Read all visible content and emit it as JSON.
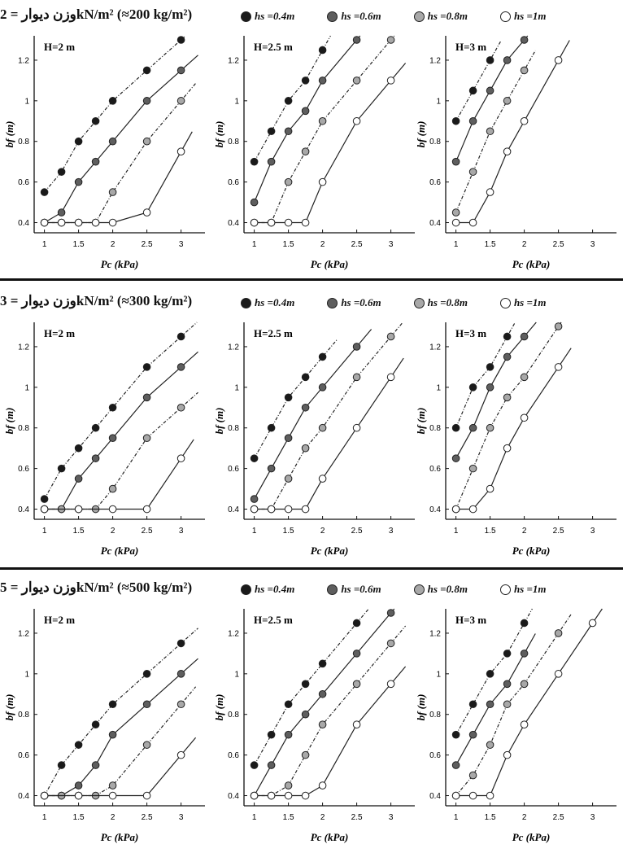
{
  "legend": [
    {
      "label": "hs =0.4m",
      "color": "#1a1a1a"
    },
    {
      "label": "hs =0.6m",
      "color": "#5e5e5e"
    },
    {
      "label": "hs =0.8m",
      "color": "#a8a8a8"
    },
    {
      "label": "hs =1m",
      "color": "#ffffff"
    }
  ],
  "rows": [
    {
      "title": "وزن دیوار = 2kN/m² (≈200 kg/m²)"
    },
    {
      "title": "وزن دیوار = 3kN/m² (≈300 kg/m²)"
    },
    {
      "title": "وزن دیوار = 5kN/m² (≈500 kg/m²)"
    }
  ],
  "chart_data": [
    {
      "type": "line",
      "row": 0,
      "panel_label": "H=2 m",
      "xlabel": "Pc (kPa)",
      "ylabel": "bf (m)",
      "xticks": [
        "1",
        "1.5",
        "2",
        "2.5",
        "3"
      ],
      "yticks": [
        "0.4",
        "0.6",
        "0.8",
        "1",
        "1.2"
      ],
      "xlim": [
        0.85,
        3.35
      ],
      "ylim": [
        0.35,
        1.32
      ],
      "series": [
        {
          "name": "hs =0.4m",
          "x": [
            1,
            1.25,
            1.5,
            1.75,
            2,
            2.5,
            3
          ],
          "y": [
            0.55,
            0.65,
            0.8,
            0.9,
            1.0,
            1.15,
            1.3
          ]
        },
        {
          "name": "hs =0.6m",
          "x": [
            1,
            1.25,
            1.5,
            1.75,
            2,
            2.5,
            3
          ],
          "y": [
            0.4,
            0.45,
            0.6,
            0.7,
            0.8,
            1.0,
            1.15
          ]
        },
        {
          "name": "hs =0.8m",
          "x": [
            1,
            1.25,
            1.5,
            1.75,
            2,
            2.5,
            3
          ],
          "y": [
            0.4,
            0.4,
            0.4,
            0.4,
            0.55,
            0.8,
            1.0
          ]
        },
        {
          "name": "hs =1m",
          "x": [
            1,
            1.25,
            1.5,
            1.75,
            2,
            2.5,
            3
          ],
          "y": [
            0.4,
            0.4,
            0.4,
            0.4,
            0.4,
            0.45,
            0.75
          ]
        }
      ]
    },
    {
      "type": "line",
      "row": 0,
      "panel_label": "H=2.5 m",
      "xlabel": "Pc (kPa)",
      "ylabel": "bf (m)",
      "xticks": [
        "1",
        "1.5",
        "2",
        "2.5",
        "3"
      ],
      "yticks": [
        "0.4",
        "0.6",
        "0.8",
        "1",
        "1.2"
      ],
      "xlim": [
        0.85,
        3.35
      ],
      "ylim": [
        0.35,
        1.32
      ],
      "series": [
        {
          "name": "hs =0.4m",
          "x": [
            1,
            1.25,
            1.5,
            1.75,
            2
          ],
          "y": [
            0.7,
            0.85,
            1.0,
            1.1,
            1.25
          ]
        },
        {
          "name": "hs =0.6m",
          "x": [
            1,
            1.25,
            1.5,
            1.75,
            2,
            2.5
          ],
          "y": [
            0.5,
            0.7,
            0.85,
            0.95,
            1.1,
            1.3
          ]
        },
        {
          "name": "hs =0.8m",
          "x": [
            1,
            1.25,
            1.5,
            1.75,
            2,
            2.5,
            3
          ],
          "y": [
            0.4,
            0.4,
            0.6,
            0.75,
            0.9,
            1.1,
            1.3
          ]
        },
        {
          "name": "hs =1m",
          "x": [
            1,
            1.25,
            1.5,
            1.75,
            2,
            2.5,
            3
          ],
          "y": [
            0.4,
            0.4,
            0.4,
            0.4,
            0.6,
            0.9,
            1.1
          ]
        }
      ]
    },
    {
      "type": "line",
      "row": 0,
      "panel_label": "H=3 m",
      "xlabel": "Pc (kPa)",
      "ylabel": "bf (m)",
      "xticks": [
        "1",
        "1.5",
        "2",
        "2.5",
        "3"
      ],
      "yticks": [
        "0.4",
        "0.6",
        "0.8",
        "1",
        "1.2"
      ],
      "xlim": [
        0.85,
        3.35
      ],
      "ylim": [
        0.35,
        1.32
      ],
      "series": [
        {
          "name": "hs =0.4m",
          "x": [
            1,
            1.25,
            1.5
          ],
          "y": [
            0.9,
            1.05,
            1.2
          ]
        },
        {
          "name": "hs =0.6m",
          "x": [
            1,
            1.25,
            1.5,
            1.75,
            2
          ],
          "y": [
            0.7,
            0.9,
            1.05,
            1.2,
            1.3
          ]
        },
        {
          "name": "hs =0.8m",
          "x": [
            1,
            1.25,
            1.5,
            1.75,
            2
          ],
          "y": [
            0.45,
            0.65,
            0.85,
            1.0,
            1.15
          ]
        },
        {
          "name": "hs =1m",
          "x": [
            1,
            1.25,
            1.5,
            1.75,
            2,
            2.5
          ],
          "y": [
            0.4,
            0.4,
            0.55,
            0.75,
            0.9,
            1.2
          ]
        }
      ]
    },
    {
      "type": "line",
      "row": 1,
      "panel_label": "H=2 m",
      "xlabel": "Pc (kPa)",
      "ylabel": "bf (m)",
      "xticks": [
        "1",
        "1.5",
        "2",
        "2.5",
        "3"
      ],
      "yticks": [
        "0.4",
        "0.6",
        "0.8",
        "1",
        "1.2"
      ],
      "xlim": [
        0.85,
        3.35
      ],
      "ylim": [
        0.35,
        1.32
      ],
      "series": [
        {
          "name": "hs =0.4m",
          "x": [
            1,
            1.25,
            1.5,
            1.75,
            2,
            2.5,
            3
          ],
          "y": [
            0.45,
            0.6,
            0.7,
            0.8,
            0.9,
            1.1,
            1.25
          ]
        },
        {
          "name": "hs =0.6m",
          "x": [
            1,
            1.25,
            1.5,
            1.75,
            2,
            2.5,
            3
          ],
          "y": [
            0.4,
            0.4,
            0.55,
            0.65,
            0.75,
            0.95,
            1.1
          ]
        },
        {
          "name": "hs =0.8m",
          "x": [
            1,
            1.25,
            1.5,
            1.75,
            2,
            2.5,
            3
          ],
          "y": [
            0.4,
            0.4,
            0.4,
            0.4,
            0.5,
            0.75,
            0.9
          ]
        },
        {
          "name": "hs =1m",
          "x": [
            1,
            1.5,
            2,
            2.5,
            3
          ],
          "y": [
            0.4,
            0.4,
            0.4,
            0.4,
            0.65
          ]
        }
      ]
    },
    {
      "type": "line",
      "row": 1,
      "panel_label": "H=2.5 m",
      "xlabel": "Pc (kPa)",
      "ylabel": "bf (m)",
      "xticks": [
        "1",
        "1.5",
        "2",
        "2.5",
        "3"
      ],
      "yticks": [
        "0.4",
        "0.6",
        "0.8",
        "1",
        "1.2"
      ],
      "xlim": [
        0.85,
        3.35
      ],
      "ylim": [
        0.35,
        1.32
      ],
      "series": [
        {
          "name": "hs =0.4m",
          "x": [
            1,
            1.25,
            1.5,
            1.75,
            2
          ],
          "y": [
            0.65,
            0.8,
            0.95,
            1.05,
            1.15
          ]
        },
        {
          "name": "hs =0.6m",
          "x": [
            1,
            1.25,
            1.5,
            1.75,
            2,
            2.5
          ],
          "y": [
            0.45,
            0.6,
            0.75,
            0.9,
            1.0,
            1.2
          ]
        },
        {
          "name": "hs =0.8m",
          "x": [
            1,
            1.25,
            1.5,
            1.75,
            2,
            2.5,
            3
          ],
          "y": [
            0.4,
            0.4,
            0.55,
            0.7,
            0.8,
            1.05,
            1.25
          ]
        },
        {
          "name": "hs =1m",
          "x": [
            1,
            1.25,
            1.5,
            1.75,
            2,
            2.5,
            3
          ],
          "y": [
            0.4,
            0.4,
            0.4,
            0.4,
            0.55,
            0.8,
            1.05
          ]
        }
      ]
    },
    {
      "type": "line",
      "row": 1,
      "panel_label": "H=3 m",
      "xlabel": "Pc (kPa)",
      "ylabel": "bf (m)",
      "xticks": [
        "1",
        "1.5",
        "2",
        "2.5",
        "3"
      ],
      "yticks": [
        "0.4",
        "0.6",
        "0.8",
        "1",
        "1.2"
      ],
      "xlim": [
        0.85,
        3.35
      ],
      "ylim": [
        0.35,
        1.32
      ],
      "series": [
        {
          "name": "hs =0.4m",
          "x": [
            1,
            1.25,
            1.5,
            1.75
          ],
          "y": [
            0.8,
            1.0,
            1.1,
            1.25
          ]
        },
        {
          "name": "hs =0.6m",
          "x": [
            1,
            1.25,
            1.5,
            1.75,
            2
          ],
          "y": [
            0.65,
            0.8,
            1.0,
            1.15,
            1.25
          ]
        },
        {
          "name": "hs =0.8m",
          "x": [
            1,
            1.25,
            1.5,
            1.75,
            2,
            2.5
          ],
          "y": [
            0.4,
            0.6,
            0.8,
            0.95,
            1.05,
            1.3
          ]
        },
        {
          "name": "hs =1m",
          "x": [
            1,
            1.25,
            1.5,
            1.75,
            2,
            2.5
          ],
          "y": [
            0.4,
            0.4,
            0.5,
            0.7,
            0.85,
            1.1
          ]
        }
      ]
    },
    {
      "type": "line",
      "row": 2,
      "panel_label": "H=2 m",
      "xlabel": "Pc (kPa)",
      "ylabel": "bf (m)",
      "xticks": [
        "1",
        "1.5",
        "2",
        "2.5",
        "3"
      ],
      "yticks": [
        "0.4",
        "0.6",
        "0.8",
        "1",
        "1.2"
      ],
      "xlim": [
        0.85,
        3.35
      ],
      "ylim": [
        0.35,
        1.32
      ],
      "series": [
        {
          "name": "hs =0.4m",
          "x": [
            1,
            1.25,
            1.5,
            1.75,
            2,
            2.5,
            3
          ],
          "y": [
            0.4,
            0.55,
            0.65,
            0.75,
            0.85,
            1.0,
            1.15
          ]
        },
        {
          "name": "hs =0.6m",
          "x": [
            1,
            1.25,
            1.5,
            1.75,
            2,
            2.5,
            3
          ],
          "y": [
            0.4,
            0.4,
            0.45,
            0.55,
            0.7,
            0.85,
            1.0
          ]
        },
        {
          "name": "hs =0.8m",
          "x": [
            1,
            1.25,
            1.5,
            1.75,
            2,
            2.5,
            3
          ],
          "y": [
            0.4,
            0.4,
            0.4,
            0.4,
            0.45,
            0.65,
            0.85
          ]
        },
        {
          "name": "hs =1m",
          "x": [
            1,
            1.5,
            2,
            2.5,
            3
          ],
          "y": [
            0.4,
            0.4,
            0.4,
            0.4,
            0.6
          ]
        }
      ]
    },
    {
      "type": "line",
      "row": 2,
      "panel_label": "H=2.5 m",
      "xlabel": "Pc (kPa)",
      "ylabel": "bf (m)",
      "xticks": [
        "1",
        "1.5",
        "2",
        "2.5",
        "3"
      ],
      "yticks": [
        "0.4",
        "0.6",
        "0.8",
        "1",
        "1.2"
      ],
      "xlim": [
        0.85,
        3.35
      ],
      "ylim": [
        0.35,
        1.32
      ],
      "series": [
        {
          "name": "hs =0.4m",
          "x": [
            1,
            1.25,
            1.5,
            1.75,
            2,
            2.5
          ],
          "y": [
            0.55,
            0.7,
            0.85,
            0.95,
            1.05,
            1.25
          ]
        },
        {
          "name": "hs =0.6m",
          "x": [
            1,
            1.25,
            1.5,
            1.75,
            2,
            2.5,
            3
          ],
          "y": [
            0.4,
            0.55,
            0.7,
            0.8,
            0.9,
            1.1,
            1.3
          ]
        },
        {
          "name": "hs =0.8m",
          "x": [
            1,
            1.25,
            1.5,
            1.75,
            2,
            2.5,
            3
          ],
          "y": [
            0.4,
            0.4,
            0.45,
            0.6,
            0.75,
            0.95,
            1.15
          ]
        },
        {
          "name": "hs =1m",
          "x": [
            1,
            1.25,
            1.5,
            1.75,
            2,
            2.5,
            3
          ],
          "y": [
            0.4,
            0.4,
            0.4,
            0.4,
            0.45,
            0.75,
            0.95
          ]
        }
      ]
    },
    {
      "type": "line",
      "row": 2,
      "panel_label": "H=3 m",
      "xlabel": "Pc (kPa)",
      "ylabel": "bf (m)",
      "xticks": [
        "1",
        "1.5",
        "2",
        "2.5",
        "3"
      ],
      "yticks": [
        "0.4",
        "0.6",
        "0.8",
        "1",
        "1.2"
      ],
      "xlim": [
        0.85,
        3.35
      ],
      "ylim": [
        0.35,
        1.32
      ],
      "series": [
        {
          "name": "hs =0.4m",
          "x": [
            1,
            1.25,
            1.5,
            1.75,
            2
          ],
          "y": [
            0.7,
            0.85,
            1.0,
            1.1,
            1.25
          ]
        },
        {
          "name": "hs =0.6m",
          "x": [
            1,
            1.25,
            1.5,
            1.75,
            2
          ],
          "y": [
            0.55,
            0.7,
            0.85,
            0.95,
            1.1
          ]
        },
        {
          "name": "hs =0.8m",
          "x": [
            1,
            1.25,
            1.5,
            1.75,
            2,
            2.5
          ],
          "y": [
            0.4,
            0.5,
            0.65,
            0.85,
            0.95,
            1.2
          ]
        },
        {
          "name": "hs =1m",
          "x": [
            1,
            1.25,
            1.5,
            1.75,
            2,
            2.5,
            3
          ],
          "y": [
            0.4,
            0.4,
            0.4,
            0.6,
            0.75,
            1.0,
            1.25
          ]
        }
      ]
    }
  ]
}
